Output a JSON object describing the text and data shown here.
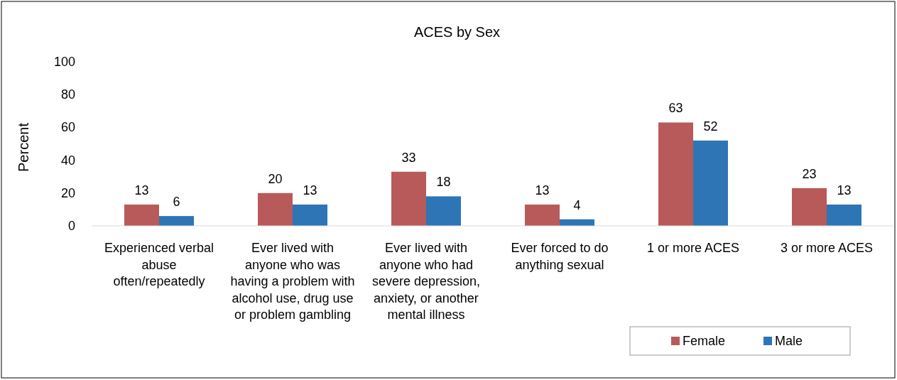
{
  "chart_data": {
    "type": "bar",
    "title": "ACES by Sex",
    "ylabel": "Percent",
    "categories": [
      "Experienced verbal abuse often/repeatedly",
      "Ever lived with anyone who was having a problem with alcohol use, drug use or problem gambling",
      "Ever lived with anyone who had severe depression, anxiety, or another mental illness",
      "Ever forced to do anything sexual",
      "1 or more ACES",
      "3 or more ACES"
    ],
    "series": [
      {
        "name": "Female",
        "color": "#b85a5a",
        "values": [
          13,
          20,
          33,
          13,
          63,
          23
        ]
      },
      {
        "name": "Male",
        "color": "#2e75b6",
        "values": [
          6,
          13,
          18,
          4,
          52,
          13
        ]
      }
    ],
    "ylim": [
      0,
      100
    ],
    "yticks": [
      0,
      20,
      40,
      60,
      80,
      100
    ],
    "grid": false,
    "legend": "bottom right",
    "data_labels": true
  }
}
